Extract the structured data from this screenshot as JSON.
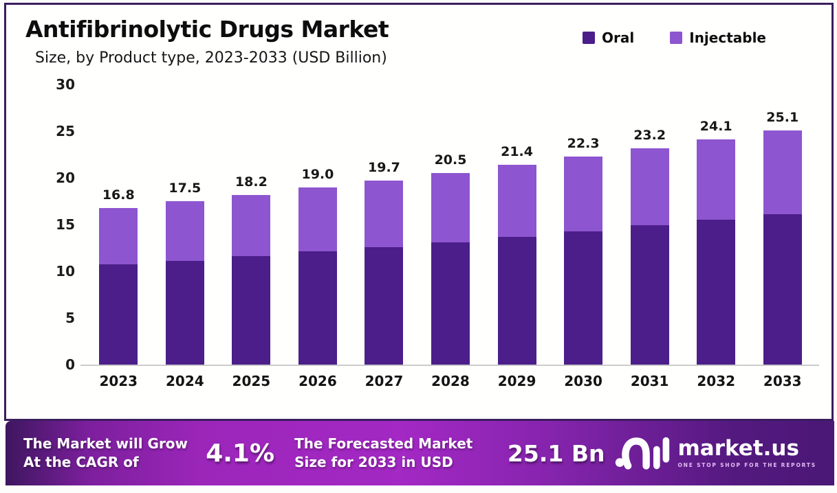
{
  "header": {
    "title": "Antifibrinolytic Drugs Market",
    "subtitle": "Size, by Product type, 2023-2033 (USD Billion)"
  },
  "legend": [
    {
      "label": "Oral",
      "color": "#4b1e89"
    },
    {
      "label": "Injectable",
      "color": "#8d55cf"
    }
  ],
  "chart_data": {
    "type": "bar",
    "stacked": true,
    "title": "Antifibrinolytic Drugs Market Size, by Product type, 2023-2033 (USD Billion)",
    "categories": [
      "2023",
      "2024",
      "2025",
      "2026",
      "2027",
      "2028",
      "2029",
      "2030",
      "2031",
      "2032",
      "2033"
    ],
    "series": [
      {
        "name": "Oral",
        "color": "#4b1e89",
        "values": [
          10.7,
          11.1,
          11.6,
          12.1,
          12.6,
          13.1,
          13.7,
          14.3,
          14.9,
          15.5,
          16.1
        ]
      },
      {
        "name": "Injectable",
        "color": "#8d55cf",
        "values": [
          6.1,
          6.4,
          6.6,
          6.9,
          7.1,
          7.4,
          7.7,
          8.0,
          8.3,
          8.6,
          9.0
        ]
      }
    ],
    "totals": [
      "16.8",
      "17.5",
      "18.2",
      "19.0",
      "19.7",
      "20.5",
      "21.4",
      "22.3",
      "23.2",
      "24.1",
      "25.1"
    ],
    "yticks": [
      0,
      5,
      10,
      15,
      20,
      25,
      30
    ],
    "ylim": [
      0,
      30
    ],
    "xlabel": "",
    "ylabel": "",
    "grid": false,
    "legend_position": "top-right"
  },
  "banner": {
    "growth_lines": [
      "The Market will Grow",
      "At the CAGR of"
    ],
    "cagr_value": "4.1%",
    "forecast_lines": [
      "The Forecasted Market",
      "Size for 2033 in USD"
    ],
    "forecast_value": "25.1 Bn",
    "logo_name": "market.us",
    "logo_tagline": "ONE STOP SHOP FOR THE REPORTS"
  },
  "colors": {
    "frame_border": "#3a1d5e",
    "oral": "#4b1e89",
    "injectable": "#8d55cf",
    "baseline": "#cbcbcb",
    "banner_gradient_left": "#3e165f",
    "banner_gradient_center": "#a328c4",
    "banner_gradient_right": "#4a1876"
  }
}
